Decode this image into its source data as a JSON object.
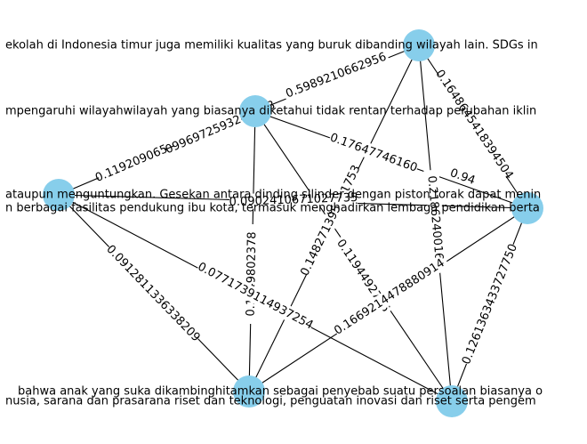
{
  "graph": {
    "node_color": "#87CEEB",
    "nodes": [
      {
        "id": "A",
        "label": "ekolah di Indonesia timur juga memiliki kualitas yang buruk dibanding wilayah lain. SDGs in"
      },
      {
        "id": "B",
        "label": "mpengaruhi wilayahwilayah yang biasanya diketahui tidak rentan terhadap perubahan iklin"
      },
      {
        "id": "C",
        "label": "ataupun menguntungkan. Gesekan antara dinding silinder dengan piston torak dapat menin"
      },
      {
        "id": "C2",
        "label": "n berbagai fasilitas pendukung ibu kota, termasuk menghadirkan lembaga pendidikan berta"
      },
      {
        "id": "D",
        "label": ""
      },
      {
        "id": "E",
        "label": "bahwa anak yang suka dikambinghitamkan sebagai penyebab suatu persoalan biasanya o"
      },
      {
        "id": "E2",
        "label": "nusia, sarana dan prasarana riset dan teknologi, penguatan inovasi dan riset serta pengem"
      },
      {
        "id": "F",
        "label": ""
      }
    ],
    "edges": [
      {
        "id": "e1",
        "label": "0.0996972593242928"
      },
      {
        "id": "e2",
        "label": "0.5989210662956"
      },
      {
        "id": "e3",
        "label": "0.1648645418394504"
      },
      {
        "id": "e4",
        "label": "0.2186240016"
      },
      {
        "id": "e5",
        "label": "0.148271395771753"
      },
      {
        "id": "e6",
        "label": "0.119209065"
      },
      {
        "id": "e7",
        "label": "0.17647746160"
      },
      {
        "id": "e8",
        "label": "0.1194492776"
      },
      {
        "id": "e9",
        "label": "0.1649802378"
      },
      {
        "id": "e10",
        "label": "0.0902410671027735"
      },
      {
        "id": "e11",
        "label": "0.0912811336338209"
      },
      {
        "id": "e12",
        "label": "0.0771739114937254"
      },
      {
        "id": "e13",
        "label": "0.1669214478880914"
      },
      {
        "id": "e14",
        "label": "0.1261363433727750"
      },
      {
        "id": "e15",
        "label": "0.94"
      }
    ]
  }
}
